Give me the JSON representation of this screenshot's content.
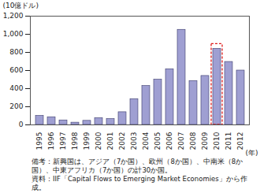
{
  "chart_data": {
    "type": "bar",
    "y_label": "(10億ドル)",
    "x_label": "(年)",
    "categories": [
      "1995",
      "1996",
      "1997",
      "1998",
      "1999",
      "2000",
      "2001",
      "2002",
      "2003",
      "2004",
      "2005",
      "2006",
      "2007",
      "2008",
      "2009",
      "2010",
      "2011",
      "2012"
    ],
    "values": [
      100,
      85,
      50,
      25,
      45,
      75,
      65,
      140,
      285,
      430,
      500,
      615,
      1050,
      485,
      540,
      840,
      695,
      600
    ],
    "color": "#9f9fd2",
    "ylim": [
      0,
      1200
    ],
    "yticks": [
      0,
      200,
      400,
      600,
      800,
      {
        "value": 1000,
        "label": "1,000"
      },
      {
        "value": 1200,
        "label": "1,200"
      }
    ],
    "grid": false,
    "highlight": "2010",
    "notes": [
      "備考：新興国は、アジア（7か国）、欧州（8か国）、中南米（8か国）、中東アフリカ（7か国）の計30か国。",
      "資料：IIF「Capital Flows to Emerging Market Economies」から作成。"
    ]
  }
}
